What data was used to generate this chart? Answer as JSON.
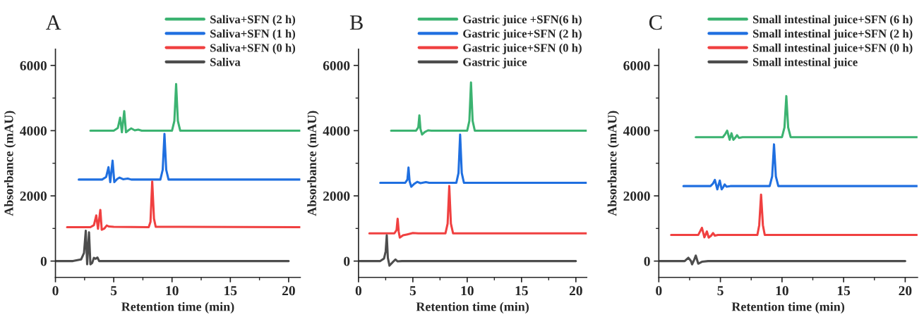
{
  "chart_data": [
    {
      "type": "line",
      "title": "A",
      "xlabel": "Retention time (min)",
      "ylabel": "Absorbance (mAU)",
      "xlim": [
        0,
        21
      ],
      "ylim": [
        -500,
        6500
      ],
      "xticks": [
        0,
        5,
        10,
        15,
        20
      ],
      "yticks": [
        0,
        2000,
        4000,
        6000
      ],
      "legend": "top right",
      "grid": false,
      "marker": "none",
      "line_style": "solid",
      "series": [
        {
          "name": "Saliva+SFN (2 h)",
          "color": "#3cb371",
          "x": [
            3,
            5,
            5.35,
            5.55,
            5.7,
            5.9,
            6.05,
            6.3,
            6.5,
            6.8,
            7.1,
            7.4,
            10.0,
            10.2,
            10.35,
            10.5,
            10.7,
            21
          ],
          "values": [
            4000,
            4000,
            4080,
            4400,
            3950,
            4600,
            3950,
            4020,
            4070,
            4010,
            4030,
            4000,
            4000,
            4300,
            5430,
            4300,
            4000,
            4000
          ]
        },
        {
          "name": "Saliva+SFN (1 h)",
          "color": "#1f6fe0",
          "x": [
            2,
            4.0,
            4.35,
            4.55,
            4.7,
            4.9,
            5.05,
            5.3,
            5.5,
            5.8,
            6.2,
            6.5,
            9.0,
            9.2,
            9.35,
            9.5,
            9.7,
            21
          ],
          "values": [
            2500,
            2500,
            2580,
            2880,
            2420,
            3080,
            2420,
            2520,
            2560,
            2510,
            2530,
            2500,
            2500,
            2800,
            3900,
            2800,
            2500,
            2500
          ]
        },
        {
          "name": "Saliva+SFN (0 h)",
          "color": "#f04040",
          "x": [
            1,
            3.0,
            3.3,
            3.5,
            3.65,
            3.85,
            3.97,
            4.2,
            4.4,
            4.6,
            5,
            8.0,
            8.15,
            8.3,
            8.45,
            8.6,
            21
          ],
          "values": [
            1040,
            1040,
            1100,
            1400,
            990,
            1570,
            960,
            1000,
            1090,
            1060,
            1050,
            1040,
            1200,
            2440,
            1300,
            1050,
            1040
          ]
        },
        {
          "name": "Saliva",
          "color": "#4d4d4d",
          "x": [
            0,
            1.5,
            2.2,
            2.45,
            2.6,
            2.72,
            2.88,
            3.0,
            3.15,
            3.3,
            3.45,
            3.6,
            3.75,
            20
          ],
          "values": [
            0,
            0,
            50,
            250,
            930,
            -100,
            880,
            -100,
            -60,
            100,
            70,
            110,
            0,
            0
          ]
        }
      ]
    },
    {
      "type": "line",
      "title": "B",
      "xlabel": "Retention time (min)",
      "ylabel": "Absorbance (mAU)",
      "xlim": [
        0,
        21
      ],
      "ylim": [
        -500,
        6500
      ],
      "xticks": [
        0,
        5,
        10,
        15,
        20
      ],
      "yticks": [
        0,
        2000,
        4000,
        6000
      ],
      "legend": "top right",
      "grid": false,
      "marker": "none",
      "line_style": "solid",
      "series": [
        {
          "name": "Gastric juice +SFN(6 h)",
          "color": "#3cb371",
          "x": [
            3,
            5.3,
            5.5,
            5.6,
            5.7,
            5.85,
            6.1,
            6.4,
            6.7,
            10.0,
            10.2,
            10.35,
            10.5,
            10.7,
            21
          ],
          "values": [
            4000,
            4000,
            4100,
            4470,
            4050,
            3880,
            3960,
            4010,
            4000,
            4000,
            4300,
            5480,
            4300,
            4000,
            4000
          ]
        },
        {
          "name": "Gastric juice+SFN (2 h)",
          "color": "#1f6fe0",
          "x": [
            2,
            4.3,
            4.5,
            4.6,
            4.7,
            4.85,
            5.1,
            5.4,
            5.7,
            6.2,
            6.5,
            9.0,
            9.2,
            9.35,
            9.5,
            9.7,
            21
          ],
          "values": [
            2400,
            2400,
            2500,
            2870,
            2450,
            2280,
            2360,
            2430,
            2390,
            2420,
            2400,
            2400,
            2700,
            3880,
            2700,
            2400,
            2400
          ]
        },
        {
          "name": "Gastric juice+SFN (0 h)",
          "color": "#f04040",
          "x": [
            1,
            3.3,
            3.5,
            3.6,
            3.7,
            3.8,
            4.1,
            4.5,
            5.0,
            5.5,
            8.0,
            8.2,
            8.35,
            8.5,
            8.7,
            21
          ],
          "values": [
            850,
            850,
            950,
            1300,
            900,
            720,
            790,
            820,
            860,
            850,
            850,
            1150,
            2300,
            1150,
            850,
            850
          ]
        },
        {
          "name": "Gastric juice",
          "color": "#4d4d4d",
          "x": [
            0,
            2.0,
            2.35,
            2.5,
            2.6,
            2.7,
            2.85,
            3.1,
            3.4,
            3.6,
            4.0,
            20
          ],
          "values": [
            0,
            0,
            80,
            300,
            790,
            100,
            -140,
            -50,
            50,
            -10,
            0,
            0
          ]
        }
      ]
    },
    {
      "type": "line",
      "title": "C",
      "xlabel": "Retention time (min)",
      "ylabel": "Absorbance (mAU)",
      "xlim": [
        0,
        21
      ],
      "ylim": [
        -500,
        6500
      ],
      "xticks": [
        0,
        5,
        10,
        15,
        20
      ],
      "yticks": [
        0,
        2000,
        4000,
        6000
      ],
      "legend": "top right",
      "grid": false,
      "marker": "none",
      "line_style": "solid",
      "series": [
        {
          "name": "Small intestinal juice+SFN (6 h)",
          "color": "#3cb371",
          "x": [
            3,
            5.2,
            5.4,
            5.55,
            5.75,
            5.9,
            6.05,
            6.2,
            6.35,
            6.5,
            6.8,
            10.0,
            10.2,
            10.35,
            10.5,
            10.7,
            21
          ],
          "values": [
            3800,
            3800,
            3900,
            4000,
            3720,
            3920,
            3720,
            3780,
            3860,
            3780,
            3800,
            3800,
            4100,
            5060,
            4100,
            3800,
            3800
          ]
        },
        {
          "name": "Small intestinal juice+SFN (2 h)",
          "color": "#1f6fe0",
          "x": [
            2,
            4.2,
            4.4,
            4.55,
            4.75,
            4.95,
            5.1,
            5.25,
            5.35,
            5.5,
            5.8,
            9.0,
            9.2,
            9.35,
            9.5,
            9.7,
            21
          ],
          "values": [
            2300,
            2300,
            2380,
            2490,
            2200,
            2470,
            2200,
            2280,
            2350,
            2280,
            2300,
            2300,
            2600,
            3580,
            2600,
            2300,
            2300
          ]
        },
        {
          "name": "Small intestinal juice+SFN (0 h)",
          "color": "#f04040",
          "x": [
            1,
            3.2,
            3.5,
            3.7,
            3.9,
            4.05,
            4.25,
            4.4,
            4.55,
            4.8,
            8.0,
            8.15,
            8.3,
            8.45,
            8.6,
            21
          ],
          "values": [
            800,
            800,
            1020,
            730,
            910,
            720,
            780,
            860,
            780,
            800,
            800,
            1100,
            2040,
            1100,
            800,
            800
          ]
        },
        {
          "name": "Small intestinal juice",
          "color": "#4d4d4d",
          "x": [
            0,
            2.1,
            2.4,
            2.6,
            2.7,
            2.85,
            3.0,
            3.2,
            3.5,
            4.0,
            20
          ],
          "values": [
            0,
            0,
            100,
            10,
            -100,
            20,
            170,
            -80,
            -20,
            0,
            0
          ]
        }
      ]
    }
  ]
}
